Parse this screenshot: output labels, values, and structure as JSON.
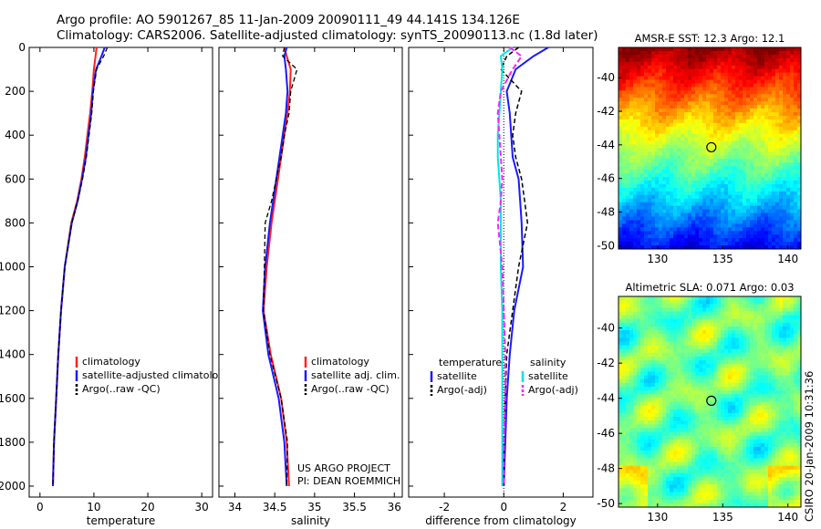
{
  "header": {
    "line1": "Argo profile: AO 5901267_85 11-Jan-2009 20090111_49 44.141S 134.126E",
    "line2": "Climatology: CARS2006. Satellite-adjusted climatology: synTS_20090113.nc (1.8d later)"
  },
  "credits": {
    "project": "US ARGO PROJECT",
    "pi": "PI: DEAN ROEMMICH",
    "csiro": "CSIRO 20-Jan-2009 10:31:36"
  },
  "colors": {
    "climatology": "#ff2020",
    "satellite": "#1a1aff",
    "argo": "#000000",
    "temp_satellite": "#00e5e5",
    "sal_argo": "#ff20ff"
  },
  "chart_data": [
    {
      "type": "line",
      "xlabel": "temperature",
      "ylabel": "",
      "xlim": [
        -2,
        32
      ],
      "ylim": [
        2050,
        0
      ],
      "xticks": [
        0,
        10,
        20,
        30
      ],
      "yticks": [
        0,
        200,
        400,
        600,
        800,
        1000,
        1200,
        1400,
        1600,
        1800,
        2000
      ],
      "legend": [
        "climatology",
        "satellite-adjusted climatology",
        "Argo(..raw -QC)"
      ],
      "series": [
        {
          "name": "climatology",
          "x": [
            10.5,
            10.3,
            10.0,
            9.7,
            9.3,
            8.8,
            8.3,
            7.7,
            6.9,
            5.8,
            4.6,
            3.9,
            3.4,
            3.0,
            2.6,
            2.4
          ],
          "y": [
            0,
            40,
            100,
            200,
            300,
            400,
            500,
            600,
            700,
            800,
            1000,
            1200,
            1400,
            1600,
            1800,
            2000
          ]
        },
        {
          "name": "satellite-adjusted climatology",
          "x": [
            12.0,
            11.4,
            10.4,
            9.8,
            9.5,
            9.0,
            8.5,
            7.8,
            7.0,
            5.9,
            4.6,
            3.9,
            3.4,
            3.0,
            2.6,
            2.4
          ],
          "y": [
            0,
            40,
            100,
            200,
            300,
            400,
            500,
            600,
            700,
            800,
            1000,
            1200,
            1400,
            1600,
            1800,
            2000
          ]
        },
        {
          "name": "Argo(..raw -QC)",
          "x": [
            12.5,
            11.8,
            10.5,
            9.9,
            9.6,
            9.1,
            8.6,
            7.9,
            7.0,
            5.9,
            4.6,
            3.9,
            3.4,
            3.0,
            2.6,
            2.4
          ],
          "y": [
            0,
            40,
            100,
            200,
            300,
            400,
            500,
            600,
            700,
            800,
            1000,
            1200,
            1400,
            1600,
            1800,
            2000
          ]
        }
      ]
    },
    {
      "type": "line",
      "xlabel": "salinity",
      "ylabel": "",
      "xlim": [
        33.8,
        36.1
      ],
      "ylim": [
        2050,
        0
      ],
      "xticks": [
        34,
        34.5,
        35,
        35.5,
        36
      ],
      "legend": [
        "climatology",
        "satellite adj. clim.",
        "Argo(..raw -QC)"
      ],
      "series": [
        {
          "name": "climatology",
          "x": [
            34.62,
            34.65,
            34.7,
            34.69,
            34.66,
            34.62,
            34.58,
            34.54,
            34.5,
            34.46,
            34.4,
            34.36,
            34.45,
            34.58,
            34.65,
            34.68
          ],
          "y": [
            0,
            40,
            100,
            200,
            300,
            400,
            500,
            600,
            700,
            800,
            1000,
            1200,
            1400,
            1600,
            1800,
            2000
          ]
        },
        {
          "name": "satellite adj. clim.",
          "x": [
            34.65,
            34.62,
            34.64,
            34.66,
            34.64,
            34.6,
            34.56,
            34.52,
            34.48,
            34.44,
            34.38,
            34.35,
            34.42,
            34.55,
            34.62,
            34.65
          ],
          "y": [
            0,
            40,
            100,
            200,
            300,
            400,
            500,
            600,
            700,
            800,
            1000,
            1200,
            1400,
            1600,
            1800,
            2000
          ]
        },
        {
          "name": "Argo(..raw -QC)",
          "x": [
            34.62,
            34.6,
            34.78,
            34.7,
            34.68,
            34.62,
            34.58,
            34.52,
            34.46,
            34.38,
            34.37,
            34.36,
            34.44,
            34.58,
            34.66,
            34.65
          ],
          "y": [
            0,
            40,
            100,
            200,
            300,
            400,
            500,
            600,
            700,
            800,
            1000,
            1200,
            1400,
            1600,
            1800,
            2000
          ]
        }
      ]
    },
    {
      "type": "line",
      "xlabel": "difference from climatology",
      "ylabel": "",
      "xlim": [
        -3.2,
        3.0
      ],
      "ylim": [
        2050,
        0
      ],
      "xticks": [
        -2,
        0,
        2
      ],
      "legend": [
        "temperature",
        "satellite",
        "Argo(-adj)",
        "salinity",
        "satellite",
        "Argo(-adj)"
      ],
      "series": [
        {
          "name": "temperature satellite",
          "x": [
            1.5,
            1.0,
            0.4,
            0.1,
            0.2,
            0.25,
            0.3,
            0.5,
            0.55,
            0.6,
            0.65,
            0.35,
            0.2,
            0.1,
            0.05,
            0.0
          ],
          "y": [
            0,
            40,
            100,
            200,
            300,
            400,
            500,
            600,
            700,
            800,
            1000,
            1200,
            1400,
            1600,
            1800,
            2000
          ]
        },
        {
          "name": "temperature Argo(-adj)",
          "x": [
            0.5,
            0.1,
            -0.1,
            0.6,
            0.4,
            0.3,
            0.4,
            0.6,
            0.7,
            0.8,
            0.5,
            0.3,
            0.1,
            0.05,
            0.0,
            0.0
          ],
          "y": [
            0,
            40,
            100,
            200,
            300,
            400,
            500,
            600,
            700,
            800,
            1000,
            1200,
            1400,
            1600,
            1800,
            2000
          ]
        },
        {
          "name": "salinity satellite",
          "x": [
            0.3,
            -0.1,
            -0.05,
            -0.1,
            -0.15,
            -0.2,
            -0.2,
            -0.15,
            -0.1,
            -0.1,
            -0.1,
            -0.05,
            -0.05,
            -0.05,
            -0.05,
            -0.05
          ],
          "y": [
            0,
            40,
            100,
            200,
            300,
            400,
            500,
            600,
            700,
            800,
            1000,
            1200,
            1400,
            1600,
            1800,
            2000
          ]
        },
        {
          "name": "salinity Argo(-adj)",
          "x": [
            0.2,
            0.6,
            0.3,
            -0.1,
            -0.2,
            -0.15,
            -0.1,
            -0.05,
            -0.1,
            -0.2,
            -0.05,
            0.0,
            0.05,
            0.05,
            0.0,
            0.0
          ],
          "y": [
            0,
            40,
            100,
            200,
            300,
            400,
            500,
            600,
            700,
            800,
            1000,
            1200,
            1400,
            1600,
            1800,
            2000
          ]
        }
      ]
    },
    {
      "type": "heatmap",
      "title": "AMSR-E SST: 12.3 Argo: 12.1",
      "xlim": [
        127,
        141
      ],
      "ylim": [
        -50.2,
        -38.2
      ],
      "xticks": [
        130,
        135,
        140
      ],
      "yticks": [
        -40,
        -42,
        -44,
        -46,
        -48,
        -50
      ],
      "marker": {
        "x": 134.126,
        "y": -44.141
      }
    },
    {
      "type": "heatmap",
      "title": "Altimetric SLA: 0.071 Argo: 0.03",
      "xlim": [
        127,
        141
      ],
      "ylim": [
        -50.2,
        -38.2
      ],
      "xticks": [
        130,
        135,
        140
      ],
      "yticks": [
        -40,
        -42,
        -44,
        -46,
        -48,
        -50
      ],
      "marker": {
        "x": 134.126,
        "y": -44.141
      }
    }
  ]
}
